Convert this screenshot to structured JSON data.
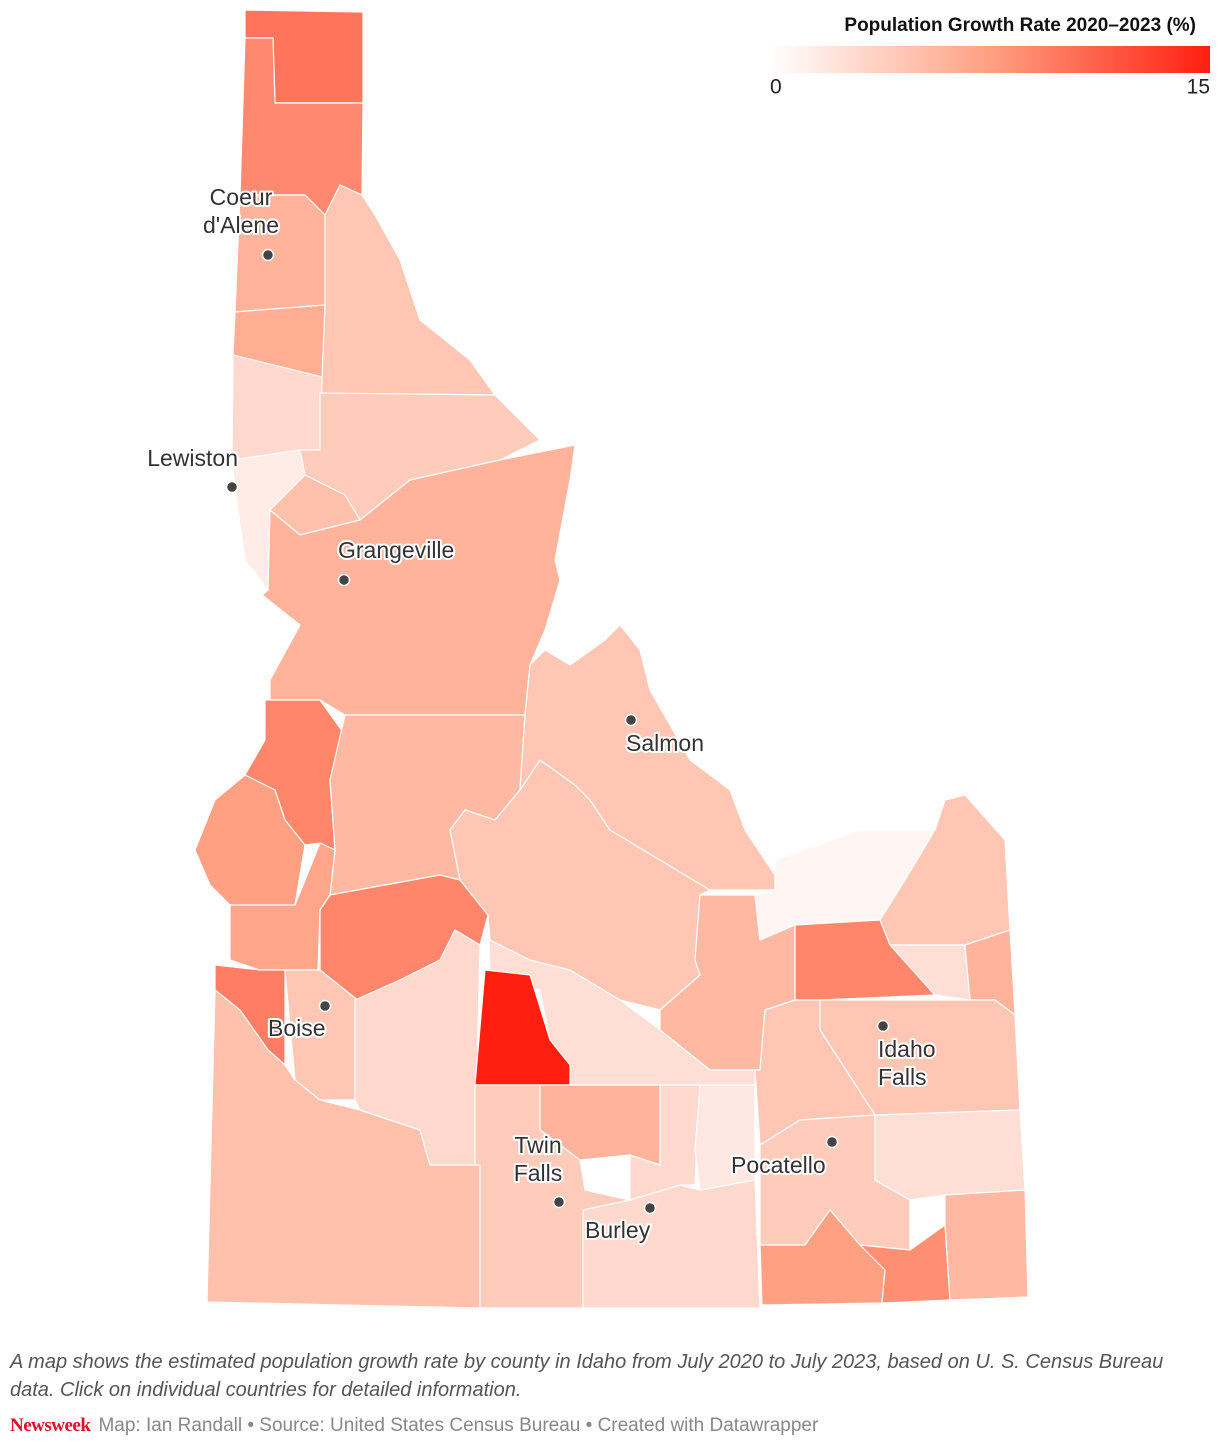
{
  "chart_data": {
    "type": "choropleth",
    "legend_title": "Population Growth Rate 2020–2023 (%)",
    "scale": {
      "min": 0,
      "max": 15
    },
    "color_stops": [
      "#ffffff",
      "#ffa082",
      "#ff1e10"
    ],
    "region_values": [
      10,
      8.8,
      6,
      4.5,
      6.5,
      3,
      1.5,
      4,
      5,
      6,
      9,
      7.5,
      5.5,
      7,
      9.5,
      9,
      4.5,
      5,
      3,
      2.5,
      15,
      4.5,
      4.5,
      5.5,
      0.7,
      4.5,
      9,
      2.5,
      6,
      4.5,
      4.5,
      6,
      4,
      3,
      3,
      1.8,
      4,
      2.5,
      7.5,
      8.5,
      5.5
    ],
    "cities": [
      {
        "label_lines": [
          "Coeur",
          "d'Alene"
        ]
      },
      {
        "label_lines": [
          "Lewiston"
        ]
      },
      {
        "label_lines": [
          "Grangeville"
        ]
      },
      {
        "label_lines": [
          "Salmon"
        ]
      },
      {
        "label_lines": [
          "Boise"
        ]
      },
      {
        "label_lines": [
          "Idaho",
          "Falls"
        ]
      },
      {
        "label_lines": [
          "Twin",
          "Falls"
        ]
      },
      {
        "label_lines": [
          "Burley"
        ]
      },
      {
        "label_lines": [
          "Pocatello"
        ]
      }
    ]
  },
  "caption": "A map shows the estimated population growth rate by county in Idaho from July 2020 to July 2023, based on U. S. Census Bureau data. Click on individual countries for detailed information.",
  "footer": {
    "brand": "Newsweek",
    "credits": "Map: Ian Randall • Source: United States Census Bureau • Created with Datawrapper"
  }
}
